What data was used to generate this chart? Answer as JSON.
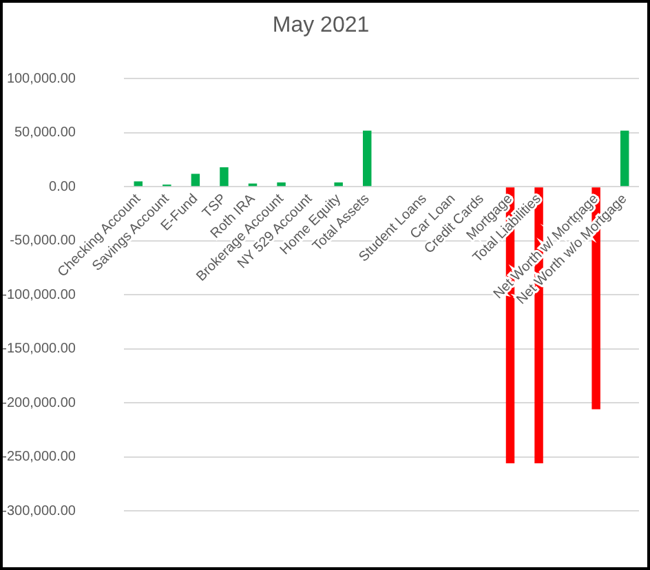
{
  "chart_data": {
    "type": "bar",
    "title": "May 2021",
    "categories": [
      "Checking Account",
      "Savings Account",
      "E-Fund",
      "TSP",
      "Roth IRA",
      "Brokerage Account",
      "NY 529 Account",
      "Home Equity",
      "Total Assets",
      null,
      "Student Loans",
      "Car Loan",
      "Credit Cards",
      "Mortgage",
      "Total Liabilities",
      null,
      "Net Worth w/ Mortgage",
      "Net Worth w/o Mortgage"
    ],
    "values": [
      5000,
      2000,
      12000,
      18000,
      3000,
      4000,
      null,
      4000,
      52000,
      null,
      null,
      null,
      null,
      -256000,
      -256000,
      null,
      -206000,
      52000
    ],
    "colors": [
      "#00b050",
      "#00b050",
      "#00b050",
      "#00b050",
      "#00b050",
      "#00b050",
      null,
      "#00b050",
      "#00b050",
      null,
      null,
      null,
      null,
      "#ff0000",
      "#ff0000",
      null,
      "#ff0000",
      "#00b050"
    ],
    "ylim": [
      -300000,
      100000
    ],
    "yticks": [
      {
        "value": -300000,
        "label": "-300,000.00"
      },
      {
        "value": -250000,
        "label": "-250,000.00"
      },
      {
        "value": -200000,
        "label": "-200,000.00"
      },
      {
        "value": -150000,
        "label": "-150,000.00"
      },
      {
        "value": -100000,
        "label": "-100,000.00"
      },
      {
        "value": -50000,
        "label": "-50,000.00"
      },
      {
        "value": 0,
        "label": "0.00"
      },
      {
        "value": 50000,
        "label": "50,000.00"
      },
      {
        "value": 100000,
        "label": "100,000.00"
      }
    ],
    "grid": "y"
  }
}
